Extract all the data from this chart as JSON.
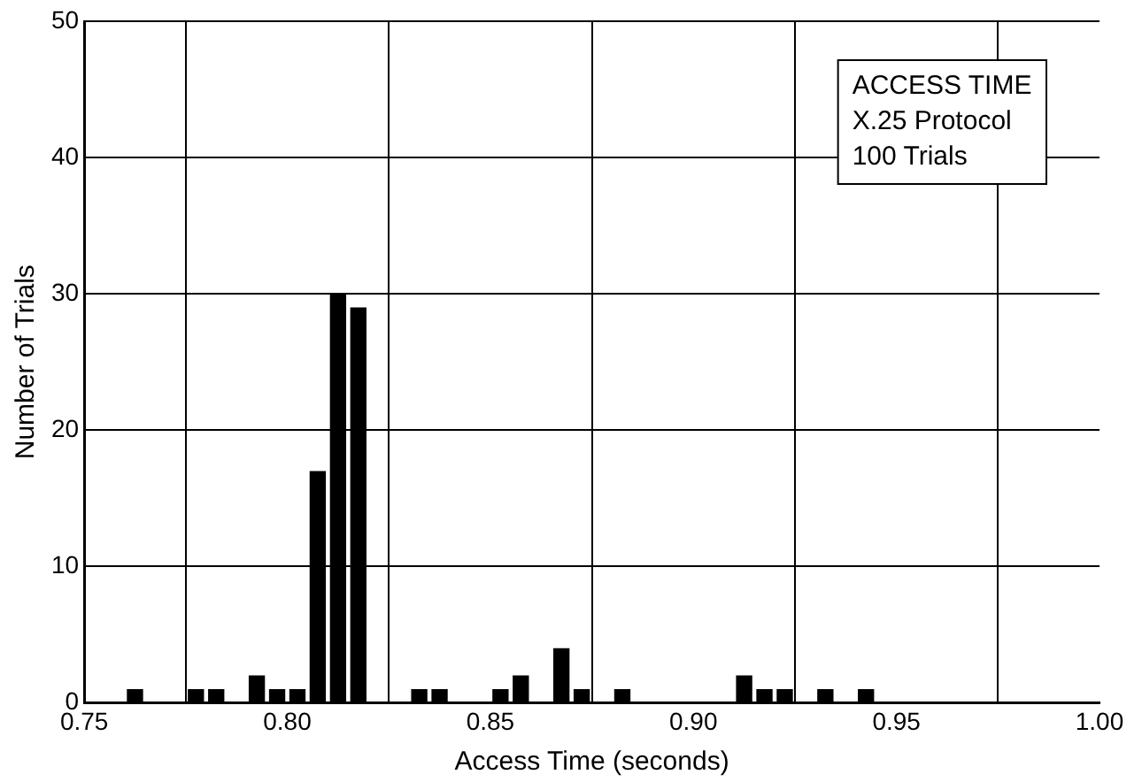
{
  "chart_data": {
    "type": "histogram",
    "xlabel": "Access Time (seconds)",
    "ylabel": "Number of Trials",
    "annotations": [
      "ACCESS TIME",
      "X.25 Protocol",
      "100 Trials"
    ],
    "bins": [
      0.76,
      0.765,
      0.77,
      0.775,
      0.78,
      0.785,
      0.79,
      0.795,
      0.8,
      0.805,
      0.81,
      0.815,
      0.82,
      0.825,
      0.83,
      0.835,
      0.84,
      0.845,
      0.85,
      0.855,
      0.86,
      0.865,
      0.87,
      0.875,
      0.88,
      0.885,
      0.89,
      0.895,
      0.9,
      0.905,
      0.91,
      0.915,
      0.92,
      0.925,
      0.93,
      0.935,
      0.94,
      0.945
    ],
    "values": [
      1,
      0,
      0,
      1,
      1,
      0,
      2,
      1,
      1,
      17,
      30,
      29,
      0,
      0,
      1,
      1,
      0,
      0,
      1,
      2,
      0,
      4,
      1,
      0,
      1,
      0,
      0,
      0,
      0,
      0,
      2,
      1,
      1,
      0,
      1,
      0,
      1
    ],
    "color": "#000000",
    "xlim": [
      0.75,
      1.0
    ],
    "xticks": [
      {
        "value": 0.75,
        "label": "0.75"
      },
      {
        "value": 0.8,
        "label": "0.80"
      },
      {
        "value": 0.85,
        "label": "0.85"
      },
      {
        "value": 0.9,
        "label": "0.90"
      },
      {
        "value": 0.95,
        "label": "0.95"
      },
      {
        "value": 1.0,
        "label": "1.00"
      }
    ],
    "ylim": [
      0,
      50
    ],
    "yticks": [
      0,
      10,
      20,
      30,
      40,
      50
    ],
    "grid": true
  }
}
